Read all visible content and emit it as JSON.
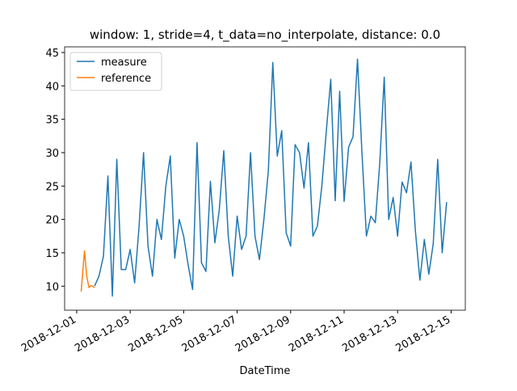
{
  "chart_data": {
    "type": "line",
    "title": "window: 1, stride=4, t_data=no_interpolate, distance: 0.0",
    "x_label": "DateTime",
    "legend": "upper left",
    "xlim": [
      "2018-11-30T13:10",
      "2018-12-15T12:45"
    ],
    "xticks": [
      "2018-12-01",
      "2018-12-03",
      "2018-12-05",
      "2018-12-07",
      "2018-12-09",
      "2018-12-11",
      "2018-12-13",
      "2018-12-15"
    ],
    "ylim": [
      6.4,
      45.85
    ],
    "yticks": [
      10,
      15,
      20,
      25,
      30,
      35,
      40,
      45
    ],
    "series": [
      {
        "name": "measure",
        "color": "#1f77b4",
        "x": [
          "2018-12-01T16:00",
          "2018-12-01T20:00",
          "2018-12-02T00:00",
          "2018-12-02T04:00",
          "2018-12-02T08:00",
          "2018-12-02T12:00",
          "2018-12-02T16:00",
          "2018-12-02T20:00",
          "2018-12-03T00:00",
          "2018-12-03T04:00",
          "2018-12-03T08:00",
          "2018-12-03T12:00",
          "2018-12-03T16:00",
          "2018-12-03T20:00",
          "2018-12-04T00:00",
          "2018-12-04T04:00",
          "2018-12-04T08:00",
          "2018-12-04T12:00",
          "2018-12-04T16:00",
          "2018-12-04T20:00",
          "2018-12-05T00:00",
          "2018-12-05T04:00",
          "2018-12-05T08:00",
          "2018-12-05T12:00",
          "2018-12-05T16:00",
          "2018-12-05T20:00",
          "2018-12-06T00:00",
          "2018-12-06T04:00",
          "2018-12-06T08:00",
          "2018-12-06T12:00",
          "2018-12-06T16:00",
          "2018-12-06T20:00",
          "2018-12-07T00:00",
          "2018-12-07T04:00",
          "2018-12-07T08:00",
          "2018-12-07T12:00",
          "2018-12-07T16:00",
          "2018-12-07T20:00",
          "2018-12-08T00:00",
          "2018-12-08T04:00",
          "2018-12-08T08:00",
          "2018-12-08T12:00",
          "2018-12-08T16:00",
          "2018-12-08T20:00",
          "2018-12-09T00:00",
          "2018-12-09T04:00",
          "2018-12-09T08:00",
          "2018-12-09T12:00",
          "2018-12-09T16:00",
          "2018-12-09T20:00",
          "2018-12-10T00:00",
          "2018-12-10T04:00",
          "2018-12-10T08:00",
          "2018-12-10T12:00",
          "2018-12-10T16:00",
          "2018-12-10T20:00",
          "2018-12-11T00:00",
          "2018-12-11T04:00",
          "2018-12-11T08:00",
          "2018-12-11T12:00",
          "2018-12-11T16:00",
          "2018-12-11T20:00",
          "2018-12-12T00:00",
          "2018-12-12T04:00",
          "2018-12-12T08:00",
          "2018-12-12T12:00",
          "2018-12-12T16:00",
          "2018-12-12T20:00",
          "2018-12-13T00:00",
          "2018-12-13T04:00",
          "2018-12-13T08:00",
          "2018-12-13T12:00",
          "2018-12-13T16:00",
          "2018-12-13T20:00",
          "2018-12-14T00:00",
          "2018-12-14T04:00",
          "2018-12-14T08:00",
          "2018-12-14T12:00",
          "2018-12-14T16:00",
          "2018-12-14T20:00"
        ],
        "values": [
          10,
          11.5,
          14.5,
          26.5,
          8.5,
          29,
          12.5,
          12.5,
          15.5,
          10.5,
          19,
          30,
          16,
          11.5,
          20,
          17,
          25,
          29.5,
          14.2,
          20,
          17.5,
          13.2,
          9.5,
          31.5,
          13.5,
          12.2,
          25.7,
          16.5,
          21.5,
          30.3,
          17.5,
          11.5,
          20.5,
          15.5,
          17.5,
          30,
          17.5,
          14,
          20,
          27.3,
          43.5,
          29.5,
          33.3,
          18,
          16,
          31.2,
          30,
          24.7,
          31.5,
          17.5,
          19,
          25,
          33.2,
          41,
          22.8,
          39.2,
          22.7,
          30.8,
          32.4,
          44,
          30,
          17.5,
          20.5,
          19.5,
          28.5,
          41.3,
          20,
          23.3,
          17.5,
          25.6,
          24,
          28.6,
          18.2,
          10.9,
          17,
          11.8,
          16.4,
          29,
          15,
          22.6
        ]
      },
      {
        "name": "reference",
        "color": "#ff7f0e",
        "x": [
          "2018-12-01T04:00",
          "2018-12-01T07:00",
          "2018-12-01T09:00",
          "2018-12-01T11:00",
          "2018-12-01T13:00",
          "2018-12-01T16:00"
        ],
        "values": [
          9.2,
          15.3,
          11.5,
          9.8,
          10.1,
          9.8
        ]
      }
    ]
  }
}
